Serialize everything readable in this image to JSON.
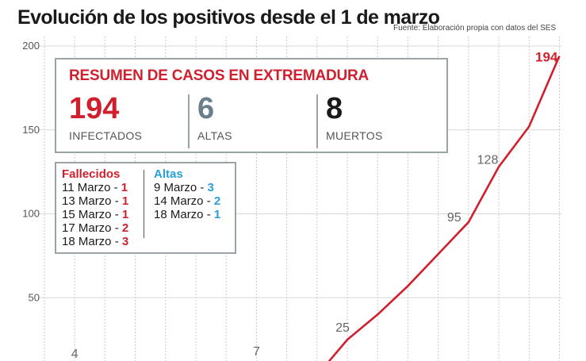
{
  "header": {
    "title": "Evolución de los positivos desde el 1 de marzo",
    "source": "Fuente: Elaboración propia con datos del SES"
  },
  "summary": {
    "title": "RESUMEN DE CASOS EN EXTREMADURA",
    "stats": [
      {
        "value": "194",
        "label": "INFECTADOS",
        "color": "#d0202e"
      },
      {
        "value": "6",
        "label": "ALTAS",
        "color": "#6b7f89"
      },
      {
        "value": "8",
        "label": "MUERTOS",
        "color": "#1a1a1a"
      }
    ]
  },
  "detail": {
    "fallecidos": {
      "title": "Fallecidos",
      "color": "#d0202e",
      "rows": [
        {
          "date": "11 Marzo - ",
          "count": "1"
        },
        {
          "date": "13 Marzo - ",
          "count": "1"
        },
        {
          "date": "15 Marzo - ",
          "count": "1"
        },
        {
          "date": "17 Marzo - ",
          "count": "2"
        },
        {
          "date": "18 Marzo - ",
          "count": "3"
        }
      ]
    },
    "altas": {
      "title": "Altas",
      "color": "#2a9fd6",
      "rows": [
        {
          "date": "9 Marzo - ",
          "count": "3"
        },
        {
          "date": "14 Marzo - ",
          "count": "2"
        },
        {
          "date": "18 Marzo - ",
          "count": "1"
        }
      ]
    }
  },
  "chart_data": {
    "type": "line",
    "title": "Evolución de los positivos desde el 1 de marzo",
    "x": [
      1,
      2,
      3,
      4,
      5,
      6,
      7,
      8,
      9,
      10,
      11,
      12,
      13,
      14,
      15,
      16,
      17,
      18
    ],
    "series": [
      {
        "values": [
          null,
          null,
          null,
          null,
          null,
          null,
          null,
          null,
          null,
          null,
          25,
          40,
          57,
          76,
          95,
          128,
          152,
          194
        ],
        "color": "#d0202e"
      }
    ],
    "point_labels": [
      {
        "x": 2,
        "label": "4"
      },
      {
        "x": 8,
        "label": "7"
      },
      {
        "x": 11,
        "label": "25"
      },
      {
        "x": 15,
        "label": "95"
      },
      {
        "x": 16,
        "label": "128"
      },
      {
        "x": 18,
        "label": "194"
      }
    ],
    "yticks": [
      50,
      100,
      150,
      200
    ],
    "ylim": [
      0,
      200
    ],
    "grid": "vertical",
    "xlabel": "",
    "ylabel": ""
  }
}
